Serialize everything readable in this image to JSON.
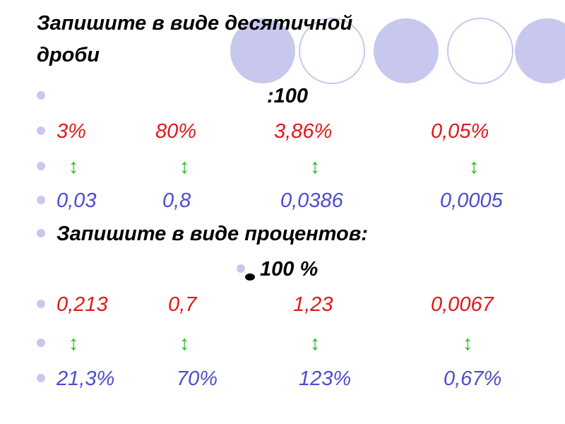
{
  "title": [
    "Запишите в виде десятичной",
    "дроби"
  ],
  "rule1": ":100",
  "row1": [
    "3%",
    "80%",
    "3,86%",
    "0,05%"
  ],
  "arrows1": [
    "↕",
    "↕",
    "↕",
    "↕"
  ],
  "row2": [
    "0,03",
    "0,8",
    "0,0386",
    "0,0005"
  ],
  "heading2": "Запишите в виде  процентов:",
  "rule2": "100 %",
  "row3": [
    "0,213",
    "0,7",
    "1,23",
    "0,0067"
  ],
  "arrows2": [
    "↕",
    "↕",
    "↕",
    "↕"
  ],
  "row4": [
    "21,3%",
    "70%",
    "123%",
    "0,67%"
  ]
}
